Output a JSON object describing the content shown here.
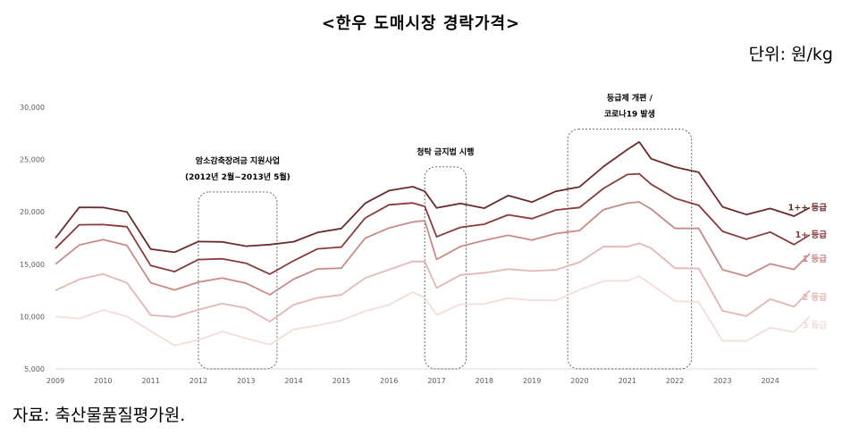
{
  "title": "<한우 도매시장 경락가격>",
  "unit": "단위: 원/kg",
  "source": "자료: 축산물품질평가원.",
  "chart_data": {
    "type": "line",
    "title": "<한우 도매시장 경락가격>",
    "xlabel": "",
    "ylabel": "",
    "ylim": [
      5000,
      30000
    ],
    "yticks": [
      5000,
      10000,
      15000,
      20000,
      25000,
      30000
    ],
    "ytick_labels": [
      "5,000",
      "10,000",
      "15,000",
      "20,000",
      "25,000",
      "30,000"
    ],
    "xticks": [
      2009,
      2010,
      2011,
      2012,
      2013,
      2014,
      2015,
      2016,
      2017,
      2018,
      2019,
      2020,
      2021,
      2022,
      2023,
      2024
    ],
    "grid": false,
    "x": [
      2009.0,
      2009.5,
      2010.0,
      2010.5,
      2011.0,
      2011.5,
      2012.0,
      2012.5,
      2013.0,
      2013.5,
      2014.0,
      2014.5,
      2015.0,
      2015.5,
      2016.0,
      2016.5,
      2016.75,
      2017.0,
      2017.5,
      2018.0,
      2018.5,
      2019.0,
      2019.5,
      2020.0,
      2020.5,
      2021.0,
      2021.25,
      2021.5,
      2022.0,
      2022.5,
      2023.0,
      2023.5,
      2024.0,
      2024.5,
      2024.83
    ],
    "series": [
      {
        "name": "1++ 등급",
        "color": "#6b2a2a",
        "values": [
          17500,
          20300,
          20600,
          19900,
          16400,
          16300,
          17000,
          17200,
          16800,
          16700,
          17300,
          18000,
          18300,
          21000,
          21900,
          22400,
          22100,
          20200,
          20900,
          20400,
          21400,
          21100,
          21900,
          22300,
          24500,
          25800,
          26700,
          25200,
          24100,
          23900,
          20500,
          19600,
          20500,
          19500,
          20400
        ]
      },
      {
        "name": "1+ 등급",
        "color": "#8a3a3a",
        "values": [
          16500,
          18800,
          18900,
          18400,
          15000,
          14300,
          15300,
          15700,
          15000,
          14000,
          15500,
          16300,
          16700,
          19500,
          20500,
          21000,
          20500,
          17500,
          18700,
          18700,
          19700,
          19500,
          20000,
          20500,
          22300,
          23400,
          23800,
          22600,
          21200,
          20800,
          18000,
          17400,
          18200,
          16700,
          17800
        ]
      },
      {
        "name": "1 등급",
        "color": "#c98a86",
        "values": [
          15000,
          17000,
          17300,
          16700,
          13400,
          12400,
          13300,
          13800,
          13000,
          12200,
          13600,
          14400,
          14800,
          17400,
          18400,
          19200,
          19000,
          15500,
          16800,
          17100,
          17900,
          17300,
          17800,
          18400,
          20100,
          20800,
          21100,
          20100,
          18500,
          18500,
          14300,
          14000,
          15000,
          14400,
          16000
        ]
      },
      {
        "name": "2 등급",
        "color": "#e2b7b3",
        "values": [
          12500,
          13700,
          13900,
          13300,
          10200,
          9800,
          10800,
          11200,
          10700,
          9700,
          11000,
          11800,
          12200,
          13500,
          14600,
          15300,
          15100,
          12900,
          13900,
          14100,
          14700,
          14200,
          14500,
          15300,
          16500,
          16800,
          17000,
          16400,
          14800,
          14500,
          10500,
          10200,
          11500,
          11000,
          12500
        ]
      },
      {
        "name": "3 등급",
        "color": "#f3dcd9",
        "values": [
          10000,
          9800,
          10500,
          10200,
          8500,
          7200,
          7900,
          8400,
          8000,
          7400,
          8600,
          9300,
          9600,
          10400,
          11300,
          12200,
          11800,
          10300,
          11000,
          11300,
          11800,
          11400,
          11700,
          12500,
          13300,
          13600,
          13700,
          13100,
          11600,
          11200,
          7800,
          7700,
          8800,
          8700,
          10000
        ]
      }
    ],
    "annotations": [
      {
        "line1": "암소감축장려금 지원사업",
        "line2": "(2012년 2월~2013년 5월)"
      },
      {
        "line1": "청탁 금지법 시행",
        "line2": ""
      },
      {
        "line1": "등급제 개편 /",
        "line2": "코로나19 발생"
      }
    ]
  }
}
